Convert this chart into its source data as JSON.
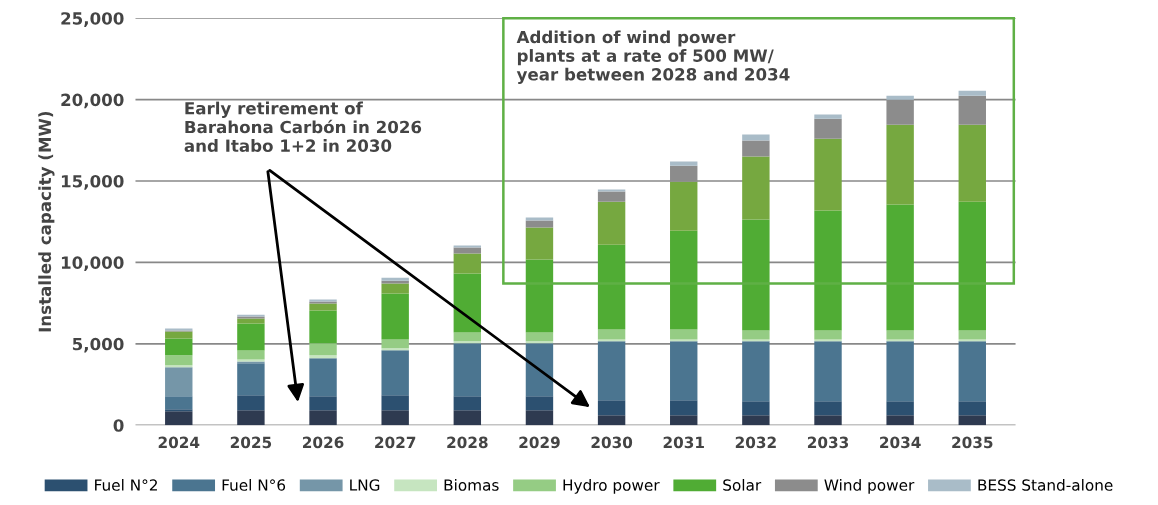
{
  "chart_data": {
    "type": "bar",
    "stacked": true,
    "ylabel": "Installed capacity (MW)",
    "categories": [
      "2024",
      "2025",
      "2026",
      "2027",
      "2028",
      "2029",
      "2030",
      "2031",
      "2032",
      "2033",
      "2034",
      "2035"
    ],
    "series": [
      {
        "color": "#2e3a50",
        "values": [
          860,
          920,
          920,
          920,
          920,
          920,
          610,
          610,
          610,
          610,
          610,
          610
        ]
      },
      {
        "name": "Fuel N°2",
        "color": "#2c5070",
        "values": [
          120,
          920,
          860,
          920,
          860,
          860,
          920,
          920,
          860,
          860,
          860,
          860
        ]
      },
      {
        "name": "Fuel N°6",
        "color": "#4b7590",
        "values": [
          800,
          1960,
          2330,
          2760,
          3250,
          3250,
          3620,
          3620,
          3680,
          3680,
          3680,
          3680
        ]
      },
      {
        "name": "LNG",
        "color": "#7596a8",
        "values": [
          1780,
          120,
          0,
          0,
          0,
          0,
          0,
          0,
          0,
          0,
          0,
          0
        ]
      },
      {
        "name": "Biomas",
        "color": "#c6e5c0",
        "values": [
          120,
          120,
          180,
          120,
          120,
          120,
          120,
          120,
          120,
          120,
          120,
          120
        ]
      },
      {
        "name": "Hydro power",
        "color": "#95cc84",
        "values": [
          610,
          550,
          740,
          550,
          550,
          550,
          610,
          610,
          550,
          550,
          550,
          550
        ]
      },
      {
        "name": "Solar",
        "color": "#50ac34",
        "values": [
          1040,
          1650,
          2020,
          2820,
          3620,
          4480,
          5210,
          6070,
          6810,
          7360,
          7730,
          7910
        ]
      },
      {
        "color": "#76a840",
        "values": [
          430,
          310,
          430,
          610,
          1230,
          1960,
          2640,
          3010,
          3870,
          4420,
          4910,
          4720
        ]
      },
      {
        "name": "Wind power",
        "color": "#8c8c8c",
        "values": [
          60,
          120,
          120,
          180,
          370,
          430,
          620,
          980,
          980,
          1230,
          1530,
          1780
        ]
      },
      {
        "name": "BESS Stand-alone",
        "color": "#a9bcc8",
        "values": [
          120,
          120,
          120,
          180,
          120,
          180,
          120,
          250,
          370,
          250,
          250,
          310
        ]
      }
    ],
    "ylim": [
      0,
      25000
    ],
    "yticks": [
      0,
      {
        "value": 5000,
        "label": "5,000"
      },
      {
        "value": 10000,
        "label": "10,000"
      },
      {
        "value": 15000,
        "label": "15,000"
      },
      {
        "value": 20000,
        "label": "20,000"
      },
      {
        "value": 25000,
        "label": "25,000"
      }
    ],
    "grid": "y",
    "legend": "bottom",
    "annotations": [
      "Early retirement of\nBarahona Carbón in 2026\nand Itabo 1+2 in 2030",
      "Addition of wind power\nplants at a rate of 500 MW/\nyear between 2028 and 2034"
    ]
  }
}
